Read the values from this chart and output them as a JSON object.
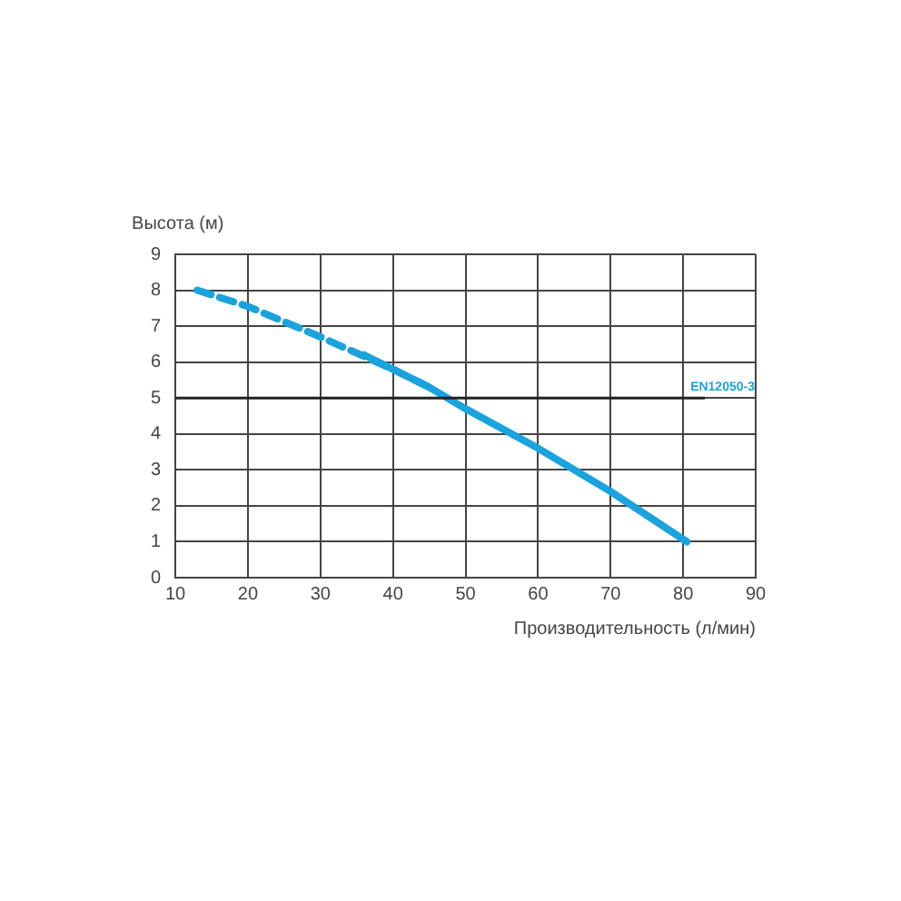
{
  "chart_data": {
    "type": "line",
    "xlabel": "Производительность (л/мин)",
    "ylabel": "Высота (м)",
    "xlim": [
      10,
      90
    ],
    "xticks": [
      10,
      20,
      30,
      40,
      50,
      60,
      70,
      80,
      90
    ],
    "ylim": [
      0,
      9
    ],
    "yticks": [
      0,
      1,
      2,
      3,
      4,
      5,
      6,
      7,
      8,
      9
    ],
    "grid": true,
    "legend": false,
    "marker": "none",
    "series": [
      {
        "color": "#1aa3dc",
        "line_style": "dashed",
        "x": [
          13,
          20,
          30,
          40,
          45
        ],
        "values": [
          8,
          7.55,
          6.7,
          5.8,
          5.3
        ]
      },
      {
        "color": "#1aa3dc",
        "line_style": "solid",
        "x": [
          36,
          45,
          50,
          60,
          70,
          80.5
        ],
        "values": [
          6.2,
          5.3,
          4.7,
          3.6,
          2.4,
          1
        ]
      }
    ],
    "ref_lines": [
      {
        "axis": "y",
        "value": 5,
        "label": "EN12050-3"
      }
    ]
  }
}
